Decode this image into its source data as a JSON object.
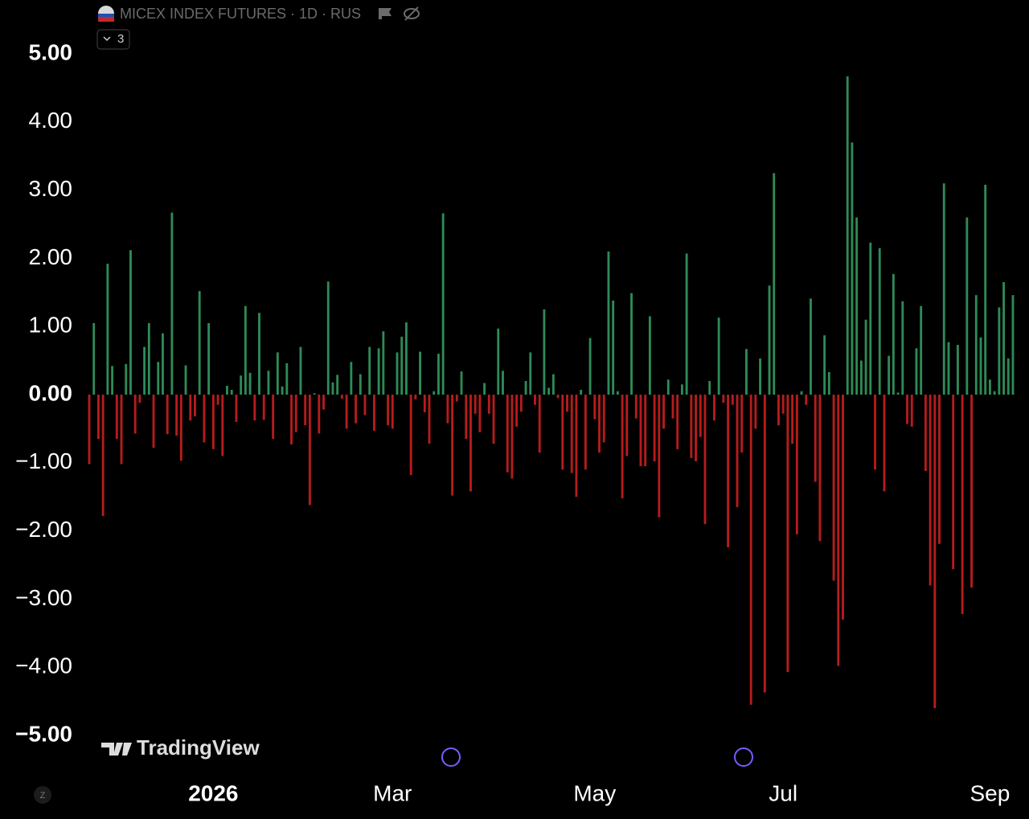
{
  "header": {
    "title": "MICEX INDEX FUTURES · 1D · RUS",
    "badge": "3"
  },
  "watermark": "TradingView",
  "corner": "Z",
  "chart_data": {
    "type": "bar",
    "categories": [
      null,
      null,
      null,
      null,
      null,
      null,
      null,
      null,
      null,
      null,
      null,
      null,
      null,
      null,
      null,
      null,
      null,
      null,
      null,
      null,
      null,
      null,
      null,
      null,
      null,
      null,
      null,
      "2026",
      null,
      null,
      null,
      null,
      null,
      null,
      null,
      null,
      null,
      null,
      null,
      null,
      null,
      null,
      null,
      null,
      null,
      null,
      null,
      null,
      null,
      null,
      null,
      null,
      null,
      null,
      null,
      null,
      null,
      null,
      null,
      null,
      null,
      null,
      null,
      null,
      null,
      null,
      "Mar",
      null,
      null,
      null,
      null,
      null,
      null,
      null,
      null,
      null,
      null,
      null,
      null,
      null,
      null,
      null,
      null,
      null,
      null,
      null,
      null,
      null,
      null,
      null,
      null,
      null,
      null,
      null,
      null,
      null,
      null,
      null,
      null,
      null,
      null,
      null,
      null,
      null,
      null,
      null,
      null,
      null,
      null,
      null,
      "May",
      null,
      null,
      null,
      null,
      null,
      null,
      null,
      null,
      null,
      null,
      null,
      null,
      null,
      null,
      null,
      null,
      null,
      null,
      null,
      null,
      null,
      null,
      null,
      null,
      null,
      null,
      null,
      null,
      null,
      null,
      null,
      null,
      null,
      null,
      null,
      null,
      null,
      null,
      null,
      null,
      "Jul",
      null,
      null,
      null,
      null,
      null,
      null,
      null,
      null,
      null,
      null,
      null,
      null,
      null,
      null,
      null,
      null,
      null,
      null,
      null,
      null,
      null,
      null,
      null,
      null,
      null,
      null,
      null,
      null,
      null,
      null,
      null,
      null,
      null,
      null,
      null,
      null,
      null,
      null,
      null,
      null,
      null,
      null,
      null,
      null,
      "Sep",
      null,
      null,
      null,
      null,
      null
    ],
    "values": [
      -1.02,
      1.05,
      -0.65,
      -1.78,
      1.92,
      0.42,
      -0.65,
      -1.02,
      0.45,
      2.12,
      -0.57,
      -0.12,
      0.7,
      1.05,
      -0.78,
      0.48,
      0.9,
      -0.58,
      2.67,
      -0.6,
      -0.97,
      0.43,
      -0.38,
      -0.32,
      1.52,
      -0.7,
      1.05,
      -0.8,
      -0.15,
      -0.9,
      0.13,
      0.07,
      -0.4,
      0.28,
      1.3,
      0.32,
      -0.38,
      1.2,
      -0.37,
      0.35,
      -0.65,
      0.62,
      0.12,
      0.46,
      -0.73,
      -0.55,
      0.7,
      -0.45,
      -1.62,
      0.02,
      -0.57,
      -0.22,
      1.66,
      0.18,
      0.29,
      -0.06,
      -0.5,
      0.48,
      -0.42,
      0.3,
      -0.3,
      0.7,
      -0.53,
      0.68,
      0.93,
      -0.45,
      -0.5,
      0.62,
      0.85,
      1.06,
      -1.18,
      -0.07,
      0.63,
      -0.26,
      -0.72,
      0.05,
      0.6,
      2.66,
      -0.42,
      -1.48,
      -0.1,
      0.34,
      -0.65,
      -1.42,
      -0.28,
      -0.55,
      0.17,
      -0.28,
      -0.72,
      0.97,
      0.35,
      -1.14,
      -1.23,
      -0.47,
      -0.25,
      0.2,
      0.62,
      -0.15,
      -0.85,
      1.25,
      0.1,
      0.3,
      -0.05,
      -1.1,
      -0.25,
      -1.15,
      -1.5,
      0.07,
      -1.1,
      0.83,
      -0.36,
      -0.85,
      -0.7,
      2.1,
      1.38,
      0.05,
      -1.52,
      -0.9,
      1.49,
      -0.35,
      -1.05,
      -1.05,
      1.15,
      -0.98,
      -1.8,
      -0.5,
      0.22,
      -0.35,
      -0.8,
      0.15,
      2.07,
      -0.93,
      -0.98,
      -0.62,
      -1.9,
      0.2,
      -0.38,
      1.13,
      -0.12,
      -2.24,
      -0.15,
      -1.65,
      -0.85,
      0.67,
      -4.55,
      -0.5,
      0.53,
      -4.37,
      1.6,
      3.25,
      -0.45,
      -0.28,
      -4.07,
      -0.72,
      -2.05,
      0.05,
      -0.15,
      1.41,
      -1.28,
      -2.15,
      0.87,
      0.33,
      -2.73,
      -3.98,
      -3.3,
      4.67,
      3.7,
      2.6,
      0.5,
      1.1,
      2.23,
      -1.1,
      2.15,
      -1.42,
      0.57,
      1.77,
      0.03,
      1.37,
      -0.43,
      -0.47,
      0.68,
      1.3,
      -1.12,
      -2.8,
      -4.6,
      -2.19,
      3.1,
      0.77,
      -2.56,
      0.73,
      -3.22,
      2.6,
      -2.83,
      1.46,
      0.84,
      3.08,
      0.22,
      0.05,
      1.28,
      1.65,
      0.53,
      1.46
    ],
    "up_color": "#2e8b57",
    "down_color": "#b71c1c",
    "ylim": [
      -5,
      5
    ],
    "yticks": [
      {
        "value": 5,
        "label": "5.00"
      },
      {
        "value": 4,
        "label": "4.00"
      },
      {
        "value": 3,
        "label": "3.00"
      },
      {
        "value": 2,
        "label": "2.00"
      },
      {
        "value": 1,
        "label": "1.00"
      },
      {
        "value": 0,
        "label": "0.00"
      },
      {
        "value": -1,
        "label": "−1.00"
      },
      {
        "value": -2,
        "label": "−2.00"
      },
      {
        "value": -3,
        "label": "−3.00"
      },
      {
        "value": -4,
        "label": "−4.00"
      },
      {
        "value": -5,
        "label": "−5.00"
      }
    ],
    "grid": false
  }
}
